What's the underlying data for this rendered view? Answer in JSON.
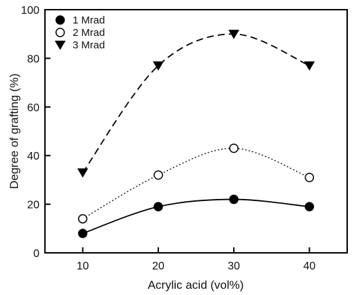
{
  "chart_data": {
    "type": "line",
    "title": "",
    "xlabel": "Acrylic acid (vol%)",
    "ylabel": "Degree of grafting (%)",
    "xlim": [
      5,
      45
    ],
    "ylim": [
      0,
      100
    ],
    "xticks": [
      10,
      20,
      30,
      40
    ],
    "xtick_labels": [
      "10",
      "20",
      "30",
      "40"
    ],
    "yticks": [
      0,
      20,
      40,
      60,
      80,
      100
    ],
    "ytick_labels": [
      "0",
      "20",
      "40",
      "60",
      "80",
      "100"
    ],
    "grid": false,
    "legend": "top-left",
    "x": [
      10,
      20,
      30,
      40
    ],
    "series": [
      {
        "name": "1 Mrad",
        "values": [
          8,
          19,
          22,
          19
        ],
        "marker": "filled-circle",
        "line": "solid"
      },
      {
        "name": "2 Mrad",
        "values": [
          14,
          32,
          43,
          31
        ],
        "marker": "open-circle",
        "line": "dotted"
      },
      {
        "name": "3 Mrad",
        "values": [
          33,
          77,
          90,
          77
        ],
        "marker": "filled-triangle-down",
        "line": "dashed"
      }
    ]
  }
}
